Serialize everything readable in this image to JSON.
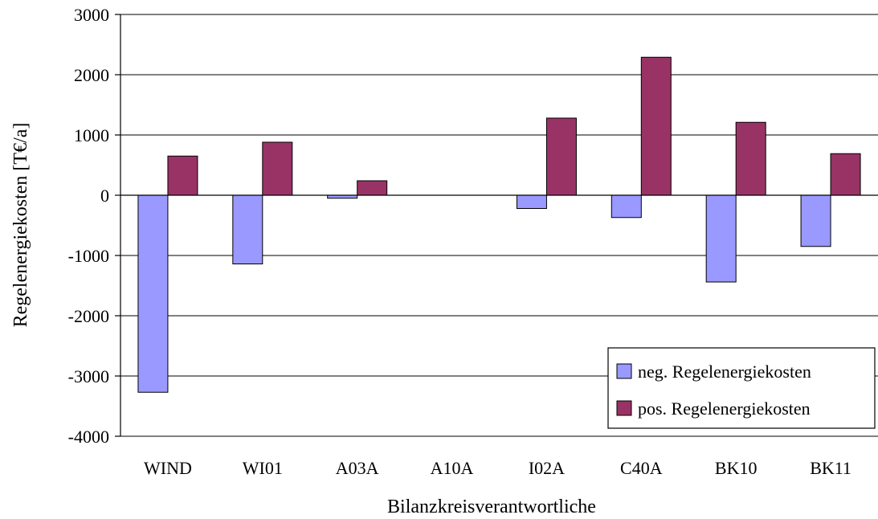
{
  "chart_data": {
    "type": "bar",
    "title": "",
    "xlabel": "Bilanzkreisverantwortliche",
    "ylabel": "Regelenergiekosten [T€/a]",
    "categories": [
      "WIND",
      "WI01",
      "A03A",
      "A10A",
      "I02A",
      "C40A",
      "BK10",
      "BK11"
    ],
    "series": [
      {
        "name": "neg. Regelenergiekosten",
        "color": "#9999ff",
        "values": [
          -3270,
          -1140,
          -50,
          0,
          -220,
          -370,
          -1440,
          -850
        ]
      },
      {
        "name": "pos. Regelenergiekosten",
        "color": "#993366",
        "values": [
          650,
          880,
          240,
          0,
          1280,
          2290,
          1210,
          690
        ]
      }
    ],
    "ylim": [
      -4000,
      3000
    ],
    "yticks": [
      3000,
      2000,
      1000,
      0,
      -1000,
      -2000,
      -3000,
      -4000
    ],
    "grid": true,
    "legend_position": "bottom-right"
  }
}
